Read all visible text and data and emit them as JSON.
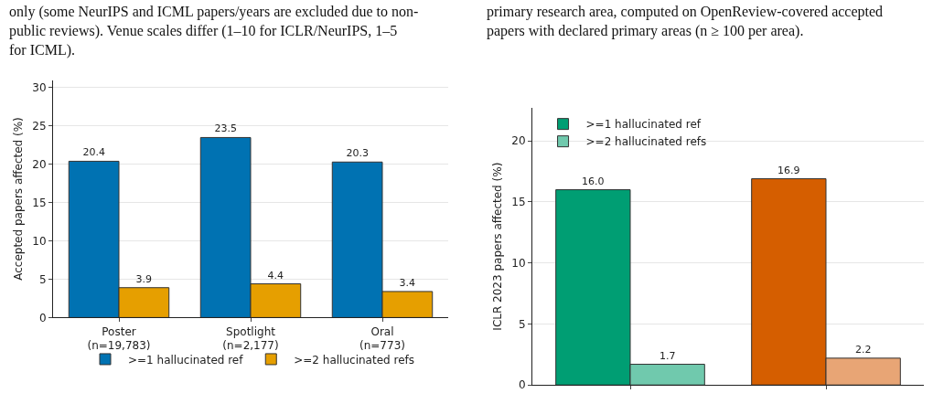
{
  "chart_data": [
    {
      "type": "bar",
      "ylabel": "Accepted papers affected (%)",
      "categories": [
        "Poster\n(n=19,783)",
        "Spotlight\n(n=2,177)",
        "Oral\n(n=773)"
      ],
      "series": [
        {
          "name": ">=1 hallucinated ref",
          "color": "#0072b2",
          "values": [
            20.4,
            23.5,
            20.3
          ],
          "value_labels": [
            "20.4",
            "23.5",
            "20.3"
          ]
        },
        {
          "name": ">=2 hallucinated refs",
          "color": "#e69f00",
          "values": [
            3.9,
            4.4,
            3.4
          ],
          "value_labels": [
            "3.9",
            "4.4",
            "3.4"
          ]
        }
      ],
      "ylim": [
        0,
        31
      ],
      "yticks": [
        0,
        5,
        10,
        15,
        20,
        25,
        30
      ],
      "grid": "y",
      "legend": "bottom",
      "annotations": [
        "only (some NeurIPS and ICML papers/years are excluded due to non-public reviews). Venue scales differ (1–10 for ICLR/NeurIPS, 1–5 for ICML)."
      ]
    },
    {
      "type": "bar",
      "ylabel": "ICLR 2023 papers affected (%)",
      "categories": [
        null,
        null
      ],
      "series": [
        {
          "name": ">=1 hallucinated ref",
          "color": "#009e73",
          "colors": [
            "#009e73",
            "#d55e00"
          ],
          "values": [
            16.0,
            16.9
          ],
          "value_labels": [
            "16.0",
            "16.9"
          ]
        },
        {
          "name": ">=2 hallucinated refs",
          "color": "#70c9ad",
          "colors": [
            "#70c9ad",
            "#e8a575"
          ],
          "values": [
            1.7,
            2.2
          ],
          "value_labels": [
            "1.7",
            "2.2"
          ]
        }
      ],
      "ylim": [
        0,
        22.7
      ],
      "yticks": [
        0,
        5,
        10,
        15,
        20
      ],
      "grid": "y",
      "legend": "top left",
      "annotations": [
        "primary research area, computed on OpenReview-covered accepted papers with declared primary areas (n ≥ 100 per area)."
      ]
    }
  ]
}
